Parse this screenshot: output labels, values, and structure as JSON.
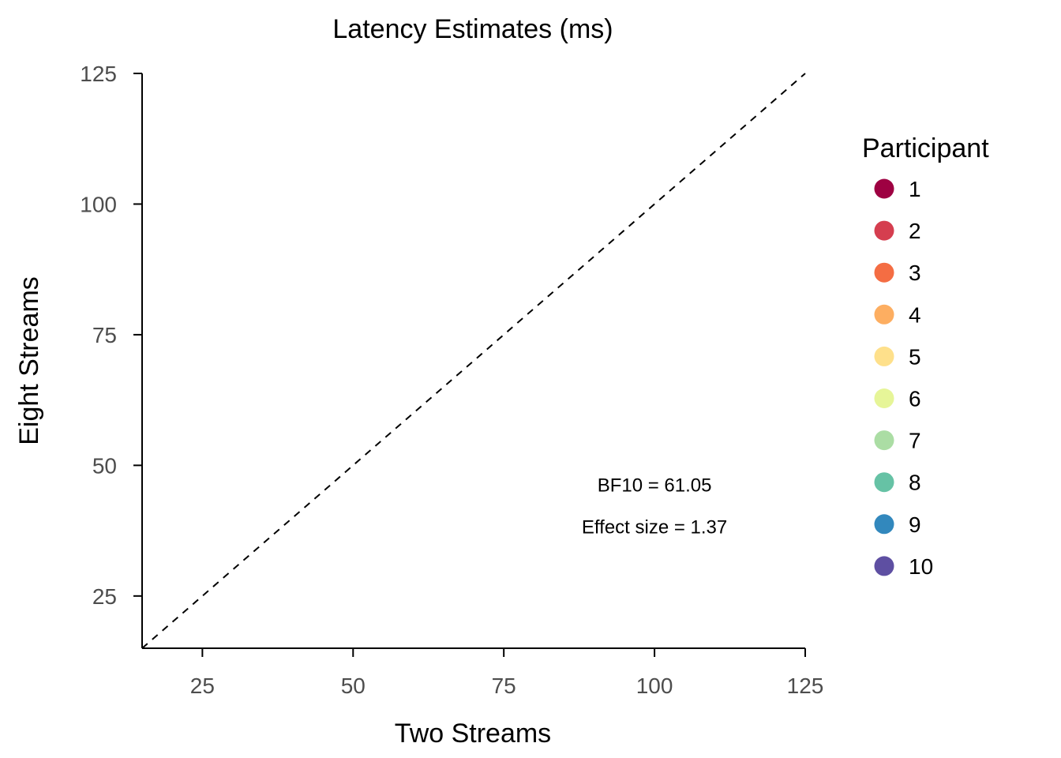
{
  "chart_data": {
    "type": "scatter",
    "title": "Latency Estimates (ms)",
    "xlabel": "Two Streams",
    "ylabel": "Eight Streams",
    "xlim": [
      15,
      125
    ],
    "ylim": [
      15,
      125
    ],
    "xticks": [
      "25",
      "50",
      "75",
      "100",
      "125"
    ],
    "yticks": [
      "25",
      "50",
      "75",
      "100",
      "125"
    ],
    "reference_line": {
      "from": [
        15,
        15
      ],
      "to": [
        125,
        125
      ],
      "style": "dashed"
    },
    "annotations": [
      "BF10 = 61.05",
      "Effect size = 1.37"
    ],
    "annotation_anchor": [
      100,
      45
    ],
    "legend": {
      "title": "Participant",
      "placement": "right",
      "entries": [
        {
          "label": "1",
          "color": "#9E0142"
        },
        {
          "label": "2",
          "color": "#D53E4F"
        },
        {
          "label": "3",
          "color": "#F46D43"
        },
        {
          "label": "4",
          "color": "#FDAE61"
        },
        {
          "label": "5",
          "color": "#FEE08B"
        },
        {
          "label": "6",
          "color": "#E6F598"
        },
        {
          "label": "7",
          "color": "#ABDDA4"
        },
        {
          "label": "8",
          "color": "#66C2A5"
        },
        {
          "label": "9",
          "color": "#3288BD"
        },
        {
          "label": "10",
          "color": "#5E4FA2"
        }
      ]
    },
    "series": [],
    "grid": false
  }
}
